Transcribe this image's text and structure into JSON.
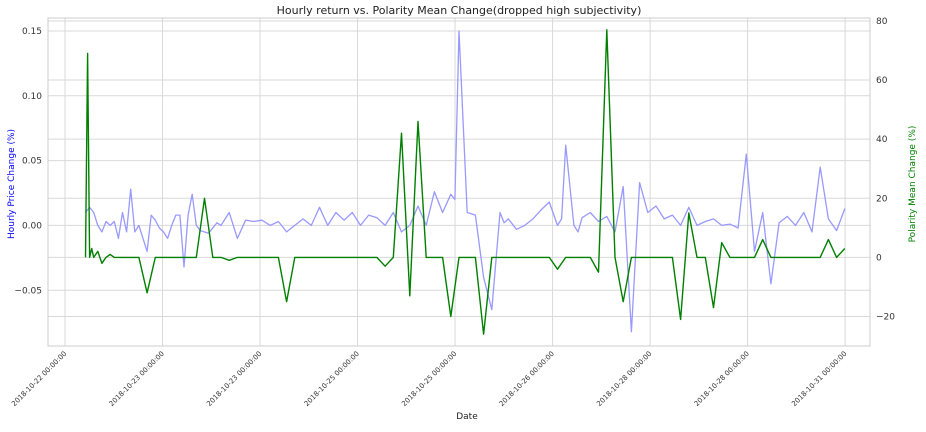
{
  "chart_data": {
    "type": "line",
    "title": "Hourly return vs. Polarity Mean Change(dropped high subjectivity)",
    "xlabel": "Date",
    "ylabel_left": "Hourly Price Change (%)",
    "ylabel_right": "Polarity Mean Change (%)",
    "grid": true,
    "x_ticks": [
      "2018-10-22 00:00:00",
      "2018-10-23 00:00:00",
      "2018-10-23 00:00:00",
      "2018-10-25 00:00:00",
      "2018-10-25 00:00:00",
      "2018-10-26 00:00:00",
      "2018-10-28 00:00:00",
      "2018-10-28 00:00:00",
      "2018-10-31 00:00:00"
    ],
    "xlim": [
      0,
      192
    ],
    "y_left": {
      "ticks": [
        "0.15",
        "0.10",
        "0.05",
        "0.00",
        "−0.05"
      ],
      "tick_values": [
        0.15,
        0.1,
        0.05,
        0.0,
        -0.05
      ],
      "ylim": [
        -0.093,
        0.16
      ]
    },
    "y_right": {
      "ticks": [
        "80",
        "60",
        "40",
        "20",
        "0",
        "−20"
      ],
      "tick_values": [
        80,
        60,
        40,
        20,
        0,
        -20
      ],
      "ylim": [
        -30,
        81
      ]
    },
    "colors": {
      "price": "#9999ff",
      "polarity": "#008000",
      "grid": "#d9d9d9",
      "left_label": "#0000ff",
      "right_label": "#008000"
    },
    "series": [
      {
        "name": "Hourly Price Change",
        "axis": "left",
        "x": [
          5,
          6,
          7,
          8,
          9,
          10,
          11,
          12,
          13,
          14,
          15,
          16,
          17,
          18,
          20,
          21,
          22,
          23,
          24,
          25,
          26,
          27,
          28,
          29,
          30,
          31,
          32,
          33,
          35,
          37,
          38,
          40,
          42,
          44,
          46,
          48,
          50,
          52,
          54,
          56,
          58,
          60,
          62,
          64,
          66,
          68,
          70,
          72,
          74,
          76,
          78,
          80,
          82,
          84,
          86,
          88,
          90,
          92,
          94,
          95,
          96,
          98,
          100,
          102,
          104,
          106,
          107,
          108,
          110,
          112,
          114,
          116,
          118,
          120,
          121,
          122,
          124,
          125,
          126,
          128,
          130,
          132,
          134,
          136,
          138,
          140,
          142,
          144,
          146,
          148,
          150,
          152,
          154,
          156,
          158,
          160,
          162,
          164,
          166,
          168,
          170,
          172,
          174,
          176,
          178,
          180,
          182,
          184,
          186,
          188,
          190
        ],
        "values": [
          0.01,
          0.014,
          0.01,
          0.0,
          -0.005,
          0.003,
          0.0,
          0.003,
          -0.01,
          0.01,
          -0.005,
          0.028,
          -0.005,
          0.0,
          -0.02,
          0.008,
          0.004,
          -0.002,
          -0.005,
          -0.01,
          0.0,
          0.008,
          0.008,
          -0.032,
          0.008,
          0.024,
          0.0,
          -0.004,
          -0.006,
          0.002,
          0.0,
          0.01,
          -0.01,
          0.004,
          0.003,
          0.004,
          0.0,
          0.003,
          -0.005,
          0.0,
          0.005,
          0.0,
          0.014,
          0.0,
          0.01,
          0.004,
          0.01,
          0.0,
          0.008,
          0.006,
          0.0,
          0.01,
          -0.005,
          0.0,
          0.015,
          0.0,
          0.026,
          0.01,
          0.024,
          0.02,
          0.15,
          0.01,
          0.008,
          -0.04,
          -0.065,
          0.01,
          0.002,
          0.005,
          -0.003,
          0.0,
          0.005,
          0.012,
          0.018,
          0.0,
          0.005,
          0.062,
          0.0,
          -0.005,
          0.006,
          0.01,
          0.003,
          0.007,
          -0.005,
          0.03,
          -0.082,
          0.033,
          0.01,
          0.015,
          0.005,
          0.008,
          0.0,
          0.014,
          0.0,
          0.003,
          0.005,
          0.0,
          0.001,
          -0.002,
          0.055,
          -0.02,
          0.01,
          -0.045,
          0.002,
          0.007,
          0.0,
          0.01,
          -0.005,
          0.045,
          0.005,
          -0.004,
          0.013
        ]
      },
      {
        "name": "Polarity Mean Change",
        "axis": "right",
        "x": [
          5,
          5.5,
          6,
          6.5,
          7,
          8,
          9,
          10,
          11,
          12,
          14,
          16,
          18,
          20,
          22,
          23,
          24,
          26,
          28,
          30,
          32,
          34,
          36,
          38,
          40,
          42,
          44,
          46,
          48,
          50,
          52,
          54,
          56,
          58,
          60,
          62,
          64,
          66,
          68,
          70,
          72,
          74,
          76,
          78,
          80,
          82,
          84,
          86,
          88,
          90,
          92,
          94,
          96,
          98,
          100,
          102,
          104,
          106,
          108,
          110,
          112,
          114,
          116,
          118,
          120,
          122,
          124,
          126,
          128,
          130,
          132,
          134,
          136,
          138,
          140,
          142,
          144,
          146,
          148,
          150,
          152,
          154,
          156,
          158,
          160,
          162,
          164,
          166,
          168,
          170,
          172,
          174,
          176,
          178,
          180,
          182,
          184,
          186,
          188,
          190
        ],
        "values": [
          0,
          69,
          0,
          3,
          0,
          2,
          -2,
          0,
          1,
          0,
          0,
          0,
          0,
          -12,
          0,
          0,
          0,
          0,
          0,
          0,
          0,
          20,
          0,
          0,
          -1,
          0,
          0,
          0,
          0,
          0,
          0,
          -15,
          0,
          0,
          0,
          0,
          0,
          0,
          0,
          0,
          0,
          0,
          0,
          -3,
          0,
          42,
          -13,
          46,
          0,
          0,
          0,
          -20,
          0,
          0,
          0,
          -26,
          0,
          0,
          0,
          0,
          0,
          0,
          0,
          0,
          -4,
          0,
          0,
          0,
          0,
          -5,
          77,
          0,
          -15,
          0,
          0,
          0,
          0,
          0,
          0,
          -21,
          15,
          0,
          0,
          -17,
          5,
          0,
          0,
          0,
          0,
          6,
          0,
          0,
          0,
          0,
          0,
          0,
          0,
          6,
          0,
          3
        ]
      }
    ]
  }
}
